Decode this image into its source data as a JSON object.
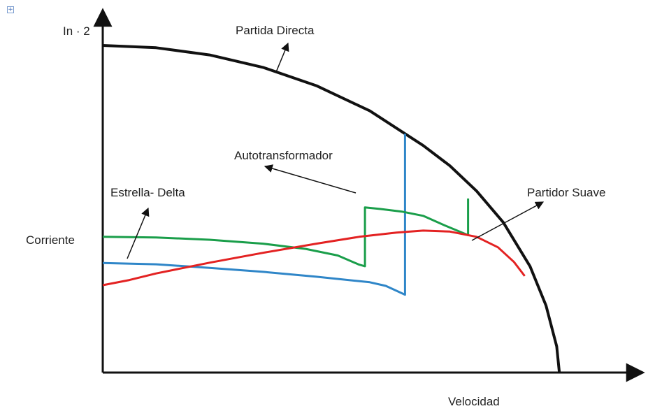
{
  "chart_data": {
    "type": "line",
    "title": "",
    "xlabel": "Velocidad",
    "ylabel": "Corriente",
    "y_tick_label": "In · 2",
    "xlim": [
      0,
      100
    ],
    "ylim": [
      0,
      100
    ],
    "grid": false,
    "legend": "annotations with arrows",
    "series": [
      {
        "name": "Partida Directa",
        "color": "#111111",
        "points": [
          [
            0,
            100
          ],
          [
            10,
            99.3
          ],
          [
            20,
            97.1
          ],
          [
            30,
            93.3
          ],
          [
            40,
            87.7
          ],
          [
            50,
            80.0
          ],
          [
            60,
            69.4
          ],
          [
            65,
            63.2
          ],
          [
            70,
            55.5
          ],
          [
            75,
            45.9
          ],
          [
            80,
            32.5
          ],
          [
            83,
            20.5
          ],
          [
            85,
            8.0
          ],
          [
            85.5,
            0
          ]
        ]
      },
      {
        "name": "Estrella- Delta",
        "color": "#2f86c8",
        "points": [
          [
            0,
            33.5
          ],
          [
            10,
            33.1
          ],
          [
            20,
            32.0
          ],
          [
            30,
            30.8
          ],
          [
            40,
            29.3
          ],
          [
            50,
            27.6
          ],
          [
            53,
            26.5
          ],
          [
            55,
            25.0
          ],
          [
            56.6,
            23.8
          ],
          [
            56.6,
            73.0
          ]
        ]
      },
      {
        "name": "Autotransformador",
        "color": "#1a9e4a",
        "points": [
          [
            0,
            41.5
          ],
          [
            10,
            41.3
          ],
          [
            20,
            40.6
          ],
          [
            30,
            39.4
          ],
          [
            38,
            37.8
          ],
          [
            44,
            35.8
          ],
          [
            48,
            33.0
          ],
          [
            49.1,
            32.5
          ],
          [
            49.1,
            50.5
          ],
          [
            52,
            50.0
          ],
          [
            56,
            49.2
          ],
          [
            60,
            47.9
          ],
          [
            64,
            45.0
          ],
          [
            68.4,
            42.0
          ],
          [
            68.4,
            53.2
          ]
        ]
      },
      {
        "name": "Partidor Suave",
        "color": "#e32222",
        "points": [
          [
            0,
            26.7
          ],
          [
            5,
            28.3
          ],
          [
            10,
            30.3
          ],
          [
            20,
            33.6
          ],
          [
            30,
            36.6
          ],
          [
            40,
            39.4
          ],
          [
            48,
            41.5
          ],
          [
            55,
            42.8
          ],
          [
            60,
            43.4
          ],
          [
            65,
            43.1
          ],
          [
            70,
            41.5
          ],
          [
            74,
            38.3
          ],
          [
            77,
            33.8
          ],
          [
            79,
            29.5
          ]
        ]
      }
    ]
  },
  "labels": {
    "partida_directa": "Partida Directa",
    "autotransformador": "Autotransformador",
    "estrella_delta": "Estrella- Delta",
    "partidor_suave": "Partidor Suave",
    "corriente": "Corriente",
    "velocidad": "Velocidad",
    "y_tick": "In · 2"
  },
  "ui": {
    "expand_glyph": "+"
  }
}
